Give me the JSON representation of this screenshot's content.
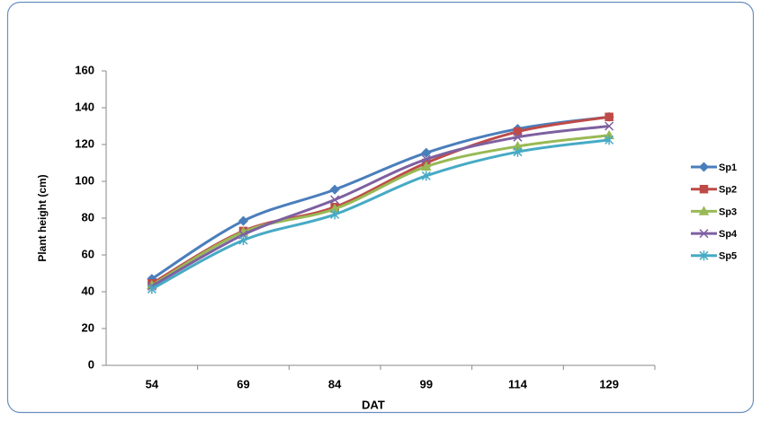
{
  "chart_data": {
    "type": "line",
    "x_label": "DAT",
    "y_label": "Plant height (cm)",
    "categories": [
      "54",
      "69",
      "84",
      "99",
      "114",
      "129"
    ],
    "series": [
      {
        "name": "Sp1",
        "color": "#4a7ebb",
        "marker": "diamond",
        "values": [
          47,
          78.5,
          95.5,
          115.5,
          128.5,
          135
        ]
      },
      {
        "name": "Sp2",
        "color": "#be4b48",
        "marker": "square",
        "values": [
          44.5,
          73,
          86,
          110,
          127,
          135
        ]
      },
      {
        "name": "Sp3",
        "color": "#98b954",
        "marker": "triangle",
        "values": [
          43.5,
          72.5,
          85,
          108,
          119,
          125
        ]
      },
      {
        "name": "Sp4",
        "color": "#7d60a0",
        "marker": "x",
        "values": [
          43,
          71,
          90,
          112,
          124,
          130
        ]
      },
      {
        "name": "Sp5",
        "color": "#46aac5",
        "marker": "star",
        "values": [
          41.5,
          68,
          82,
          103,
          116,
          122.5
        ]
      }
    ],
    "ylim": [
      0,
      160
    ],
    "yticks": [
      0,
      20,
      40,
      60,
      80,
      100,
      120,
      140,
      160
    ],
    "smooth": true,
    "legend": "right"
  }
}
